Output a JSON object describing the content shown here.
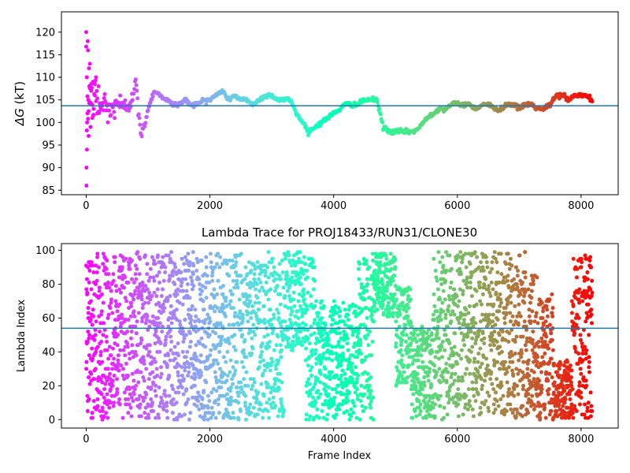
{
  "chart_data": [
    {
      "type": "scatter",
      "title": "",
      "xlabel": "",
      "ylabel": "ΔG (kT)",
      "ylabel_main": "ΔG",
      "ylabel_unit": " (kT)",
      "xlim": [
        -400,
        8600
      ],
      "ylim": [
        84,
        124.5
      ],
      "xticks": [
        0,
        2000,
        4000,
        6000,
        8000
      ],
      "xtick_labels": [
        "0",
        "2000",
        "4000",
        "6000",
        "8000"
      ],
      "yticks": [
        85,
        90,
        95,
        100,
        105,
        110,
        115,
        120
      ],
      "ytick_labels": [
        "85",
        "90",
        "95",
        "100",
        "105",
        "110",
        "115",
        "120"
      ],
      "hline": 103.7,
      "hline_color": "#1f77b4",
      "colormap": "rainbow",
      "x_max": 8180,
      "series": [
        {
          "x": [
            0,
            10,
            20,
            40,
            60,
            100,
            150,
            200,
            300,
            400,
            500,
            600,
            700,
            800,
            850,
            900,
            950,
            1000,
            1100,
            1200,
            1300,
            1400,
            1500,
            1600,
            1700,
            1800,
            1900,
            2000,
            2100,
            2200,
            2300,
            2400,
            2500,
            2600,
            2700,
            2800,
            2900,
            3000,
            3100,
            3200,
            3300,
            3400,
            3500,
            3600,
            3700,
            3800,
            3900,
            4000,
            4100,
            4200,
            4300,
            4400,
            4500,
            4600,
            4700,
            4800,
            4900,
            5000,
            5100,
            5200,
            5300,
            5400,
            5500,
            5600,
            5700,
            5800,
            5900,
            6000,
            6100,
            6200,
            6300,
            6400,
            6500,
            6600,
            6700,
            6800,
            6900,
            7000,
            7100,
            7200,
            7300,
            7400,
            7500,
            7600,
            7700,
            7800,
            7900,
            8000,
            8100,
            8180
          ],
          "y": [
            110,
            100,
            105,
            102,
            107,
            104,
            106,
            103,
            104,
            102,
            105,
            103,
            104,
            109,
            101,
            97,
            100,
            103,
            107,
            106,
            105,
            104,
            104,
            105,
            104,
            104,
            105,
            105,
            106,
            107,
            105,
            106,
            105,
            105,
            104,
            105,
            106,
            106,
            105,
            105,
            105,
            102,
            100,
            98,
            99,
            100,
            101,
            102,
            103,
            104,
            104,
            104,
            105,
            105,
            105,
            99,
            98,
            98,
            98,
            98,
            98,
            99,
            101,
            102,
            103,
            103,
            104,
            104,
            104,
            104,
            103,
            104,
            104,
            103,
            103,
            104,
            104,
            103,
            104,
            104,
            103,
            103,
            104,
            106,
            106,
            105,
            106,
            106,
            106,
            104.5
          ]
        }
      ]
    },
    {
      "type": "scatter",
      "title": "Lambda Trace for PROJ18433/RUN31/CLONE30",
      "xlabel": "Frame Index",
      "ylabel": "Lambda Index",
      "xlim": [
        -400,
        8600
      ],
      "ylim": [
        -5,
        104
      ],
      "xticks": [
        0,
        2000,
        4000,
        6000,
        8000
      ],
      "xtick_labels": [
        "0",
        "2000",
        "4000",
        "6000",
        "8000"
      ],
      "yticks": [
        0,
        20,
        40,
        60,
        80,
        100
      ],
      "ytick_labels": [
        "0",
        "20",
        "40",
        "60",
        "80",
        "100"
      ],
      "hline": 54,
      "hline_color": "#1f77b4",
      "colormap": "rainbow",
      "x_max": 8180,
      "lambda_range": [
        0,
        99
      ],
      "frames": 8180
    }
  ]
}
